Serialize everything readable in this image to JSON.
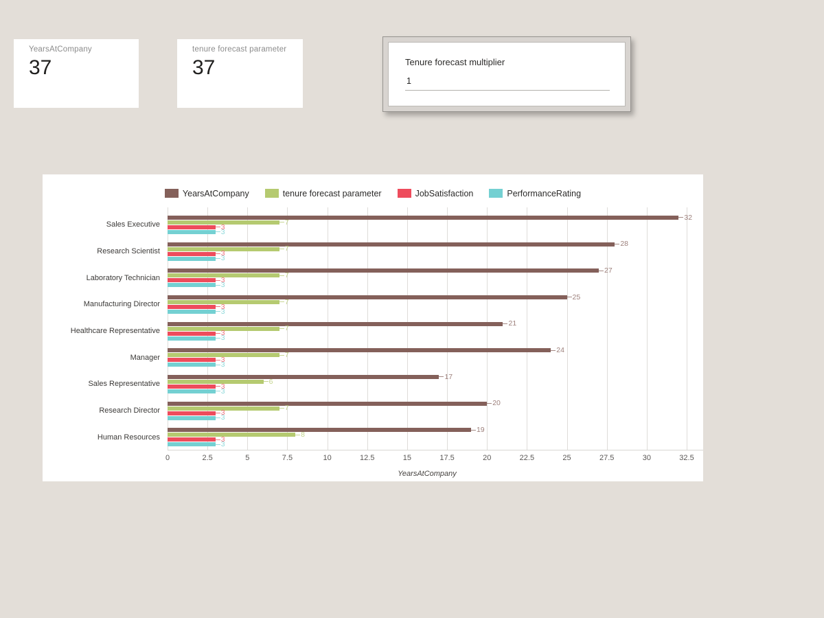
{
  "page": {
    "background": "#e3ded8",
    "card_background": "#ffffff"
  },
  "kpi_cards": [
    {
      "label": "YearsAtCompany",
      "value": "37"
    },
    {
      "label": "tenure forecast parameter",
      "value": "37"
    }
  ],
  "parameter_card": {
    "title": "Tenure forecast multiplier",
    "value": "1"
  },
  "chart_data": {
    "type": "bar",
    "orientation": "horizontal",
    "title": "",
    "xlabel": "YearsAtCompany",
    "xlim": [
      0,
      32.5
    ],
    "x_ticks": [
      "0",
      "2.5",
      "5",
      "7.5",
      "10",
      "12.5",
      "15",
      "17.5",
      "20",
      "22.5",
      "25",
      "27.5",
      "30",
      "32.5"
    ],
    "grid": "vertical",
    "legend_position": "top",
    "categories": [
      "Sales Executive",
      "Research Scientist",
      "Laboratory Technician",
      "Manufacturing Director",
      "Healthcare Representative",
      "Manager",
      "Sales Representative",
      "Research Director",
      "Human Resources"
    ],
    "series": [
      {
        "name": "YearsAtCompany",
        "color": "#84605a",
        "values": [
          32,
          28,
          27,
          25,
          21,
          24,
          17,
          20,
          19
        ]
      },
      {
        "name": "tenure forecast parameter",
        "color": "#b5ca70",
        "values": [
          7,
          7,
          7,
          7,
          7,
          7,
          6,
          7,
          8
        ]
      },
      {
        "name": "JobSatisfaction",
        "color": "#ee4c5c",
        "values": [
          3,
          3,
          3,
          3,
          3,
          3,
          3,
          3,
          3
        ]
      },
      {
        "name": "PerformanceRating",
        "color": "#74d0d2",
        "values": [
          3,
          3,
          3,
          3,
          3,
          3,
          3,
          3,
          3
        ]
      }
    ]
  }
}
